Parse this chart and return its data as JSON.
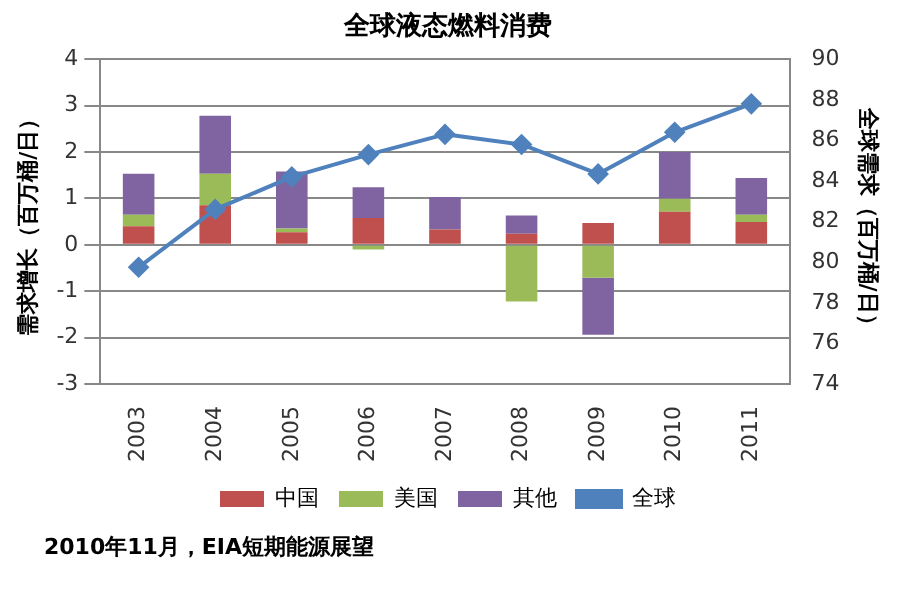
{
  "chart_data": {
    "type": "bar",
    "title": "全球液态燃料消费",
    "ylabel": "需求增长（百万桶/日）",
    "y2label": "全球需求（百万桶/日）",
    "categories": [
      "2003",
      "2004",
      "2005",
      "2006",
      "2007",
      "2008",
      "2009",
      "2010",
      "2011"
    ],
    "stacked": true,
    "series": [
      {
        "name": "中国",
        "color": "#c0504d",
        "values": [
          0.4,
          0.85,
          0.27,
          0.58,
          0.33,
          0.24,
          0.47,
          0.71,
          0.49
        ]
      },
      {
        "name": "美国",
        "color": "#9bbb59",
        "values": [
          0.25,
          0.68,
          0.08,
          -0.1,
          0.0,
          -1.22,
          -0.71,
          0.28,
          0.16
        ]
      },
      {
        "name": "其他",
        "color": "#8064a2",
        "values": [
          0.88,
          1.25,
          1.23,
          0.66,
          0.7,
          0.39,
          -1.23,
          1.01,
          0.79
        ]
      },
      {
        "name": "全球",
        "color": "#4f81bd",
        "type": "line",
        "axis": "y2",
        "marker": "diamond",
        "values": [
          79.75,
          82.6,
          84.2,
          85.3,
          86.3,
          85.8,
          84.35,
          86.4,
          87.8
        ]
      }
    ],
    "ylim": [
      -3,
      4
    ],
    "yticks": [
      -3,
      -2,
      -1,
      0,
      1,
      2,
      3,
      4
    ],
    "y2lim": [
      74,
      90
    ],
    "y2ticks": [
      74,
      76,
      78,
      80,
      82,
      84,
      86,
      88,
      90
    ],
    "grid": "y",
    "legend": "bottom",
    "annotations": [
      "2010年11月，EIA短期能源展望"
    ]
  }
}
